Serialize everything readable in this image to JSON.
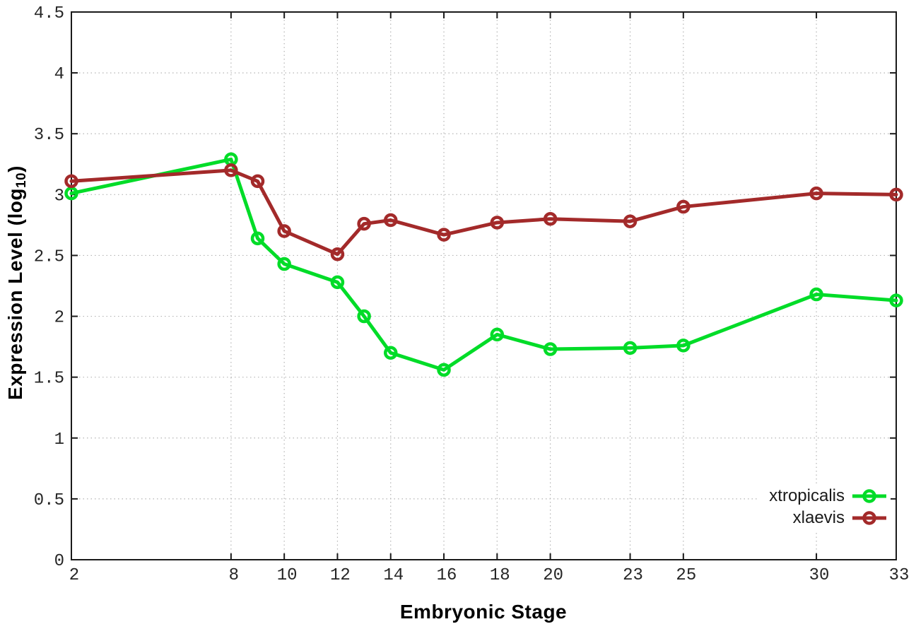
{
  "chart_data": {
    "type": "line",
    "title": "",
    "xlabel": "Embryonic Stage",
    "ylabel": "Expression Level (log10)",
    "ylabel_parts": {
      "main": "Expression Level (log",
      "sub": "10",
      "end": ")"
    },
    "x": [
      2,
      8,
      9,
      10,
      12,
      13,
      14,
      16,
      18,
      20,
      23,
      25,
      30,
      33
    ],
    "series": [
      {
        "name": "xtropicalis",
        "color": "#00dc28",
        "values": [
          3.01,
          3.29,
          2.64,
          2.43,
          2.28,
          2.0,
          1.7,
          1.56,
          1.85,
          1.73,
          1.74,
          1.76,
          2.18,
          2.13
        ]
      },
      {
        "name": "xlaevis",
        "color": "#a32a2a",
        "values": [
          3.11,
          3.2,
          3.11,
          2.7,
          2.51,
          2.76,
          2.79,
          2.67,
          2.77,
          2.8,
          2.78,
          2.9,
          3.01,
          3.0
        ]
      }
    ],
    "xlim": [
      2,
      33
    ],
    "ylim": [
      0,
      4.5
    ],
    "xticks": [
      2,
      8,
      10,
      12,
      14,
      16,
      18,
      20,
      23,
      25,
      30,
      33
    ],
    "xtick_labels": [
      "2",
      "8",
      "10",
      "12",
      "14",
      "16",
      "18",
      "20",
      "23",
      "25",
      "30",
      "33"
    ],
    "yticks": [
      0,
      0.5,
      1,
      1.5,
      2,
      2.5,
      3,
      3.5,
      4,
      4.5
    ],
    "ytick_labels": [
      "0",
      "0.5",
      "1",
      "1.5",
      "2",
      "2.5",
      "3",
      "3.5",
      "4",
      "4.5"
    ],
    "grid": true,
    "legend_position": "inside-bottom-right",
    "marker": "open-circle",
    "colors": {
      "border": "#1a1a1a",
      "grid": "#b4b4b4",
      "tick_label": "#262626"
    }
  },
  "legend": {
    "items": [
      {
        "label": "xtropicalis"
      },
      {
        "label": "xlaevis"
      }
    ]
  }
}
